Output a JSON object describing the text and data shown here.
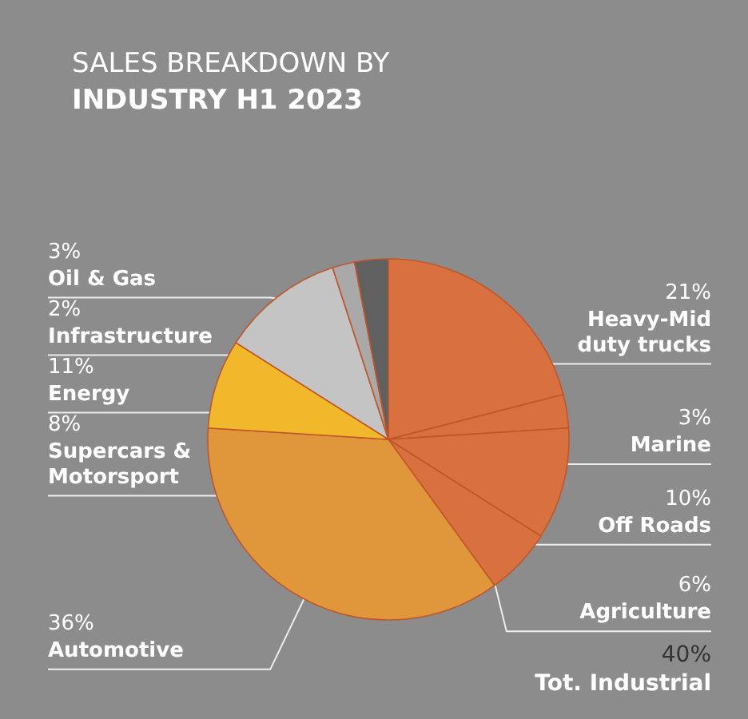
{
  "chart_data": {
    "type": "pie",
    "title": "SALES BREAKDOWN BY",
    "subtitle": "INDUSTRY H1 2023",
    "categories": [
      "Heavy-Mid duty trucks",
      "Marine",
      "Off Roads",
      "Agriculture",
      "Automotive",
      "Supercars & Motorsport",
      "Energy",
      "Infrastructure",
      "Oil & Gas"
    ],
    "values": [
      21,
      3,
      10,
      6,
      36,
      8,
      11,
      2,
      3
    ],
    "value_labels": [
      "21%",
      "3%",
      "10%",
      "6%",
      "36%",
      "8%",
      "11%",
      "2%",
      "3%"
    ],
    "colors": [
      "#d9703f",
      "#d9703f",
      "#d9703f",
      "#d9703f",
      "#e0963a",
      "#f0b82a",
      "#c4c4c4",
      "#a9a9a9",
      "#606060"
    ],
    "annotations": [
      "40%",
      "Tot. Industrial"
    ]
  }
}
